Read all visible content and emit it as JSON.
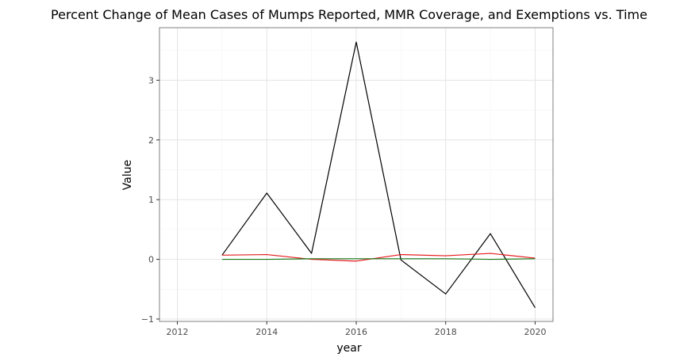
{
  "chart_data": {
    "type": "line",
    "title": "Percent Change of Mean Cases of Mumps Reported, MMR Coverage, and Exemptions vs. Time",
    "xlabel": "year",
    "ylabel": "Value",
    "xlim": [
      2011.6,
      2020.4
    ],
    "ylim": [
      -1.04,
      3.88
    ],
    "x_ticks": [
      2012,
      2014,
      2016,
      2018,
      2020
    ],
    "y_ticks": [
      -1,
      0,
      1,
      2,
      3
    ],
    "grid": true,
    "legend": "none",
    "x": [
      2013,
      2014,
      2015,
      2016,
      2017,
      2018,
      2019,
      2020
    ],
    "series": [
      {
        "color": "#000000",
        "values": [
          0.07,
          1.11,
          0.1,
          3.64,
          -0.01,
          -0.58,
          0.43,
          -0.81
        ]
      },
      {
        "color": "#e41a1c",
        "values": [
          0.07,
          0.08,
          0.0,
          -0.03,
          0.08,
          0.06,
          0.1,
          0.02
        ]
      },
      {
        "color": "#1a7a1a",
        "values": [
          0.0,
          0.0,
          0.01,
          0.01,
          0.01,
          0.01,
          0.0,
          0.01
        ]
      }
    ]
  }
}
